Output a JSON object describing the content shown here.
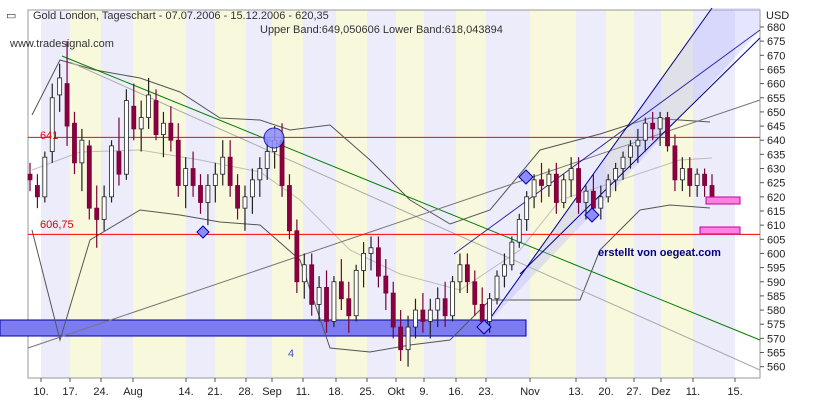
{
  "header": {
    "title": "Gold London, Tageschart - 07.07.2006 - 15.12.2006 - 620,35",
    "watermark": "www.tradesignal.com",
    "bands": "Upper Band:649,050606 Lower Band:618,043894",
    "currency": "USD"
  },
  "annotations": {
    "level_high": "641",
    "level_low": "606,75",
    "credit": "erstellt von oegeat.com",
    "marker": "4"
  },
  "colors": {
    "bar": "#222222",
    "hline": "#ff0000",
    "greenline": "#008000",
    "channel": "#00008b",
    "band": "#555555",
    "zone": "#7c7cf0",
    "pink": "#ff80e0"
  },
  "chart_data": {
    "type": "ohlc",
    "title": "Gold London, Tageschart - 07.07.2006 - 15.12.2006 - 620,35",
    "ylabel": "USD",
    "ylim": [
      556,
      686
    ],
    "yticks": [
      560,
      565,
      570,
      575,
      580,
      585,
      590,
      595,
      600,
      605,
      610,
      615,
      620,
      625,
      630,
      635,
      640,
      645,
      650,
      655,
      660,
      665,
      670,
      675,
      680
    ],
    "xticks": [
      "10.",
      "17.",
      "24.",
      "Aug",
      "14.",
      "21.",
      "28.",
      "Sep",
      "11.",
      "18.",
      "25.",
      "Okt",
      "9.",
      "16.",
      "23.",
      "Nov",
      "13.",
      "20.",
      "27.",
      "Dez",
      "11.",
      "15."
    ],
    "bars": [
      {
        "o": 628,
        "h": 632,
        "l": 622,
        "c": 626
      },
      {
        "o": 624,
        "h": 628,
        "l": 616,
        "c": 620
      },
      {
        "o": 620,
        "h": 636,
        "l": 618,
        "c": 634
      },
      {
        "o": 636,
        "h": 660,
        "l": 632,
        "c": 655
      },
      {
        "o": 656,
        "h": 667,
        "l": 650,
        "c": 662
      },
      {
        "o": 660,
        "h": 675,
        "l": 638,
        "c": 645
      },
      {
        "o": 646,
        "h": 650,
        "l": 628,
        "c": 632
      },
      {
        "o": 632,
        "h": 644,
        "l": 622,
        "c": 640
      },
      {
        "o": 638,
        "h": 640,
        "l": 612,
        "c": 616
      },
      {
        "o": 616,
        "h": 624,
        "l": 602,
        "c": 612
      },
      {
        "o": 612,
        "h": 624,
        "l": 608,
        "c": 620
      },
      {
        "o": 620,
        "h": 640,
        "l": 618,
        "c": 638
      },
      {
        "o": 636,
        "h": 648,
        "l": 624,
        "c": 628
      },
      {
        "o": 628,
        "h": 658,
        "l": 626,
        "c": 654
      },
      {
        "o": 652,
        "h": 660,
        "l": 640,
        "c": 644
      },
      {
        "o": 644,
        "h": 654,
        "l": 636,
        "c": 648
      },
      {
        "o": 648,
        "h": 662,
        "l": 644,
        "c": 656
      },
      {
        "o": 654,
        "h": 658,
        "l": 640,
        "c": 642
      },
      {
        "o": 642,
        "h": 650,
        "l": 634,
        "c": 646
      },
      {
        "o": 646,
        "h": 652,
        "l": 636,
        "c": 640
      },
      {
        "o": 640,
        "h": 646,
        "l": 620,
        "c": 624
      },
      {
        "o": 624,
        "h": 634,
        "l": 616,
        "c": 630
      },
      {
        "o": 630,
        "h": 636,
        "l": 620,
        "c": 624
      },
      {
        "o": 624,
        "h": 628,
        "l": 614,
        "c": 618
      },
      {
        "o": 618,
        "h": 628,
        "l": 610,
        "c": 624
      },
      {
        "o": 624,
        "h": 632,
        "l": 618,
        "c": 628
      },
      {
        "o": 628,
        "h": 640,
        "l": 624,
        "c": 634
      },
      {
        "o": 634,
        "h": 640,
        "l": 620,
        "c": 624
      },
      {
        "o": 624,
        "h": 628,
        "l": 612,
        "c": 616
      },
      {
        "o": 616,
        "h": 624,
        "l": 608,
        "c": 620
      },
      {
        "o": 620,
        "h": 630,
        "l": 614,
        "c": 626
      },
      {
        "o": 626,
        "h": 634,
        "l": 620,
        "c": 630
      },
      {
        "o": 630,
        "h": 640,
        "l": 626,
        "c": 636
      },
      {
        "o": 636,
        "h": 645,
        "l": 630,
        "c": 640
      },
      {
        "o": 640,
        "h": 646,
        "l": 620,
        "c": 624
      },
      {
        "o": 624,
        "h": 628,
        "l": 605,
        "c": 608
      },
      {
        "o": 608,
        "h": 612,
        "l": 586,
        "c": 590
      },
      {
        "o": 590,
        "h": 600,
        "l": 584,
        "c": 596
      },
      {
        "o": 596,
        "h": 600,
        "l": 578,
        "c": 582
      },
      {
        "o": 582,
        "h": 592,
        "l": 576,
        "c": 588
      },
      {
        "o": 588,
        "h": 594,
        "l": 572,
        "c": 576
      },
      {
        "o": 576,
        "h": 592,
        "l": 574,
        "c": 590
      },
      {
        "o": 590,
        "h": 598,
        "l": 580,
        "c": 584
      },
      {
        "o": 584,
        "h": 590,
        "l": 572,
        "c": 578
      },
      {
        "o": 578,
        "h": 596,
        "l": 576,
        "c": 594
      },
      {
        "o": 594,
        "h": 604,
        "l": 588,
        "c": 600
      },
      {
        "o": 600,
        "h": 606,
        "l": 594,
        "c": 602
      },
      {
        "o": 602,
        "h": 606,
        "l": 588,
        "c": 592
      },
      {
        "o": 592,
        "h": 598,
        "l": 580,
        "c": 586
      },
      {
        "o": 586,
        "h": 590,
        "l": 570,
        "c": 574
      },
      {
        "o": 574,
        "h": 580,
        "l": 562,
        "c": 566
      },
      {
        "o": 566,
        "h": 578,
        "l": 560,
        "c": 574
      },
      {
        "o": 574,
        "h": 584,
        "l": 570,
        "c": 580
      },
      {
        "o": 580,
        "h": 586,
        "l": 572,
        "c": 576
      },
      {
        "o": 576,
        "h": 584,
        "l": 570,
        "c": 580
      },
      {
        "o": 580,
        "h": 588,
        "l": 574,
        "c": 584
      },
      {
        "o": 584,
        "h": 590,
        "l": 574,
        "c": 578
      },
      {
        "o": 578,
        "h": 592,
        "l": 576,
        "c": 590
      },
      {
        "o": 590,
        "h": 600,
        "l": 586,
        "c": 596
      },
      {
        "o": 596,
        "h": 600,
        "l": 586,
        "c": 590
      },
      {
        "o": 590,
        "h": 594,
        "l": 578,
        "c": 582
      },
      {
        "o": 582,
        "h": 588,
        "l": 572,
        "c": 576
      },
      {
        "o": 576,
        "h": 586,
        "l": 572,
        "c": 584
      },
      {
        "o": 584,
        "h": 594,
        "l": 582,
        "c": 592
      },
      {
        "o": 592,
        "h": 600,
        "l": 588,
        "c": 596
      },
      {
        "o": 596,
        "h": 606,
        "l": 594,
        "c": 604
      },
      {
        "o": 604,
        "h": 614,
        "l": 602,
        "c": 612
      },
      {
        "o": 612,
        "h": 622,
        "l": 608,
        "c": 620
      },
      {
        "o": 620,
        "h": 628,
        "l": 616,
        "c": 626
      },
      {
        "o": 626,
        "h": 632,
        "l": 618,
        "c": 624
      },
      {
        "o": 624,
        "h": 630,
        "l": 620,
        "c": 628
      },
      {
        "o": 628,
        "h": 632,
        "l": 614,
        "c": 618
      },
      {
        "o": 618,
        "h": 628,
        "l": 616,
        "c": 626
      },
      {
        "o": 626,
        "h": 634,
        "l": 620,
        "c": 630
      },
      {
        "o": 630,
        "h": 634,
        "l": 614,
        "c": 618
      },
      {
        "o": 618,
        "h": 624,
        "l": 612,
        "c": 622
      },
      {
        "o": 622,
        "h": 628,
        "l": 614,
        "c": 616
      },
      {
        "o": 616,
        "h": 624,
        "l": 612,
        "c": 620
      },
      {
        "o": 620,
        "h": 628,
        "l": 618,
        "c": 626
      },
      {
        "o": 626,
        "h": 632,
        "l": 622,
        "c": 630
      },
      {
        "o": 630,
        "h": 636,
        "l": 626,
        "c": 634
      },
      {
        "o": 634,
        "h": 640,
        "l": 630,
        "c": 638
      },
      {
        "o": 638,
        "h": 644,
        "l": 632,
        "c": 640
      },
      {
        "o": 640,
        "h": 648,
        "l": 636,
        "c": 646
      },
      {
        "o": 646,
        "h": 650,
        "l": 640,
        "c": 644
      },
      {
        "o": 644,
        "h": 650,
        "l": 638,
        "c": 648
      },
      {
        "o": 648,
        "h": 650,
        "l": 636,
        "c": 638
      },
      {
        "o": 638,
        "h": 642,
        "l": 622,
        "c": 626
      },
      {
        "o": 626,
        "h": 634,
        "l": 622,
        "c": 630
      },
      {
        "o": 630,
        "h": 634,
        "l": 620,
        "c": 624
      },
      {
        "o": 624,
        "h": 630,
        "l": 620,
        "c": 628
      },
      {
        "o": 628,
        "h": 630,
        "l": 620,
        "c": 624
      },
      {
        "o": 624,
        "h": 628,
        "l": 618,
        "c": 620
      }
    ],
    "hlines": [
      641,
      606.75
    ]
  }
}
